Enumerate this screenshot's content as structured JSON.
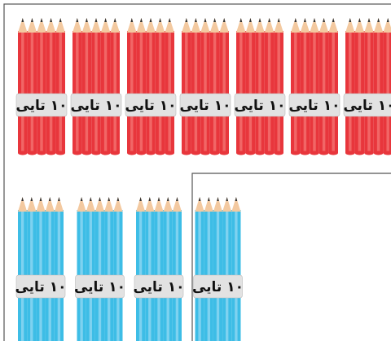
{
  "red_bundles": [
    {
      "label": "۱۰ تایی"
    },
    {
      "label": "۱۰ تایی"
    },
    {
      "label": "۱۰ تایی"
    },
    {
      "label": "۱۰ تایی"
    },
    {
      "label": "۱۰ تایی"
    },
    {
      "label": "۱۰ تایی"
    },
    {
      "label": "۱۰ تایی"
    }
  ],
  "blue_bundles": [
    {
      "label": "۱۰ تایی"
    },
    {
      "label": "۱۰ تایی"
    },
    {
      "label": "۱۰ تایی"
    },
    {
      "label": "۱۰ تایی"
    }
  ]
}
